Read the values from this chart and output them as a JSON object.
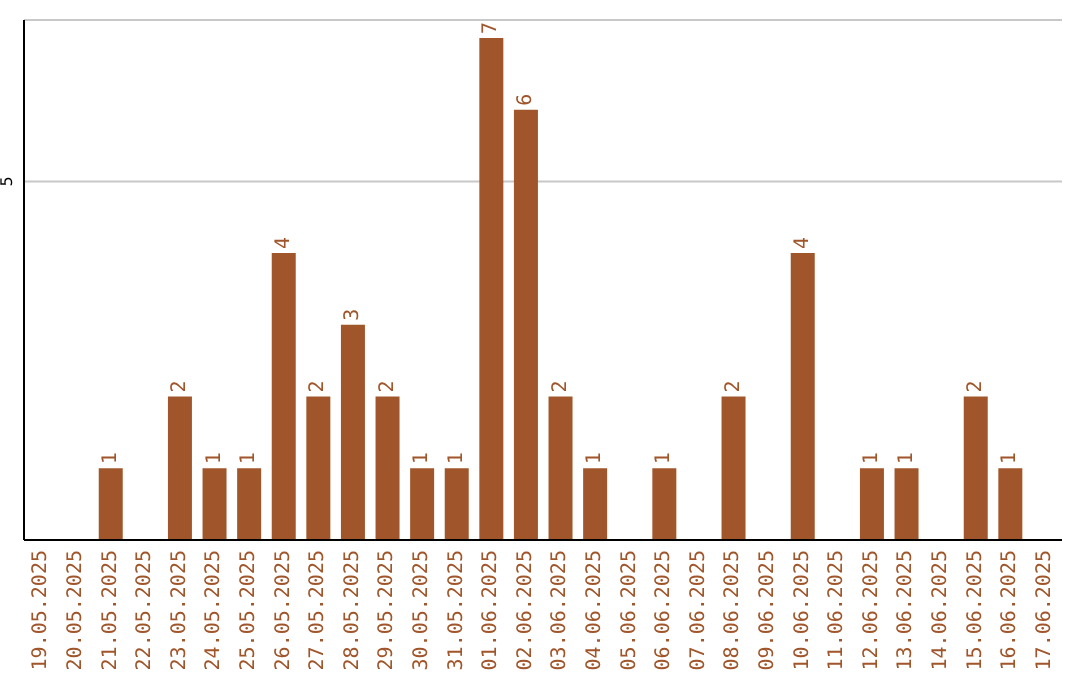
{
  "chart_data": {
    "type": "bar",
    "categories": [
      "19.05.2025",
      "20.05.2025",
      "21.05.2025",
      "22.05.2025",
      "23.05.2025",
      "24.05.2025",
      "25.05.2025",
      "26.05.2025",
      "27.05.2025",
      "28.05.2025",
      "29.05.2025",
      "30.05.2025",
      "31.05.2025",
      "01.06.2025",
      "02.06.2025",
      "03.06.2025",
      "04.06.2025",
      "05.06.2025",
      "06.06.2025",
      "07.06.2025",
      "08.06.2025",
      "09.06.2025",
      "10.06.2025",
      "11.06.2025",
      "12.06.2025",
      "13.06.2025",
      "14.06.2025",
      "15.06.2025",
      "16.06.2025",
      "17.06.2025"
    ],
    "values": [
      0,
      0,
      1,
      0,
      2,
      1,
      1,
      4,
      2,
      3,
      2,
      1,
      1,
      7,
      6,
      2,
      1,
      0,
      1,
      0,
      2,
      0,
      4,
      0,
      1,
      1,
      0,
      2,
      1,
      0
    ],
    "value_labels": [
      null,
      null,
      "1",
      null,
      "2",
      "1",
      "1",
      "4",
      "2",
      "3",
      "2",
      "1",
      "1",
      "7",
      "6",
      "2",
      "1",
      null,
      "1",
      null,
      "2",
      null,
      "4",
      null,
      "1",
      "1",
      null,
      "2",
      "1",
      null
    ],
    "color": "#a0562a",
    "ylim": [
      0,
      7.25
    ],
    "yticks": [
      5
    ],
    "grid": "y"
  }
}
